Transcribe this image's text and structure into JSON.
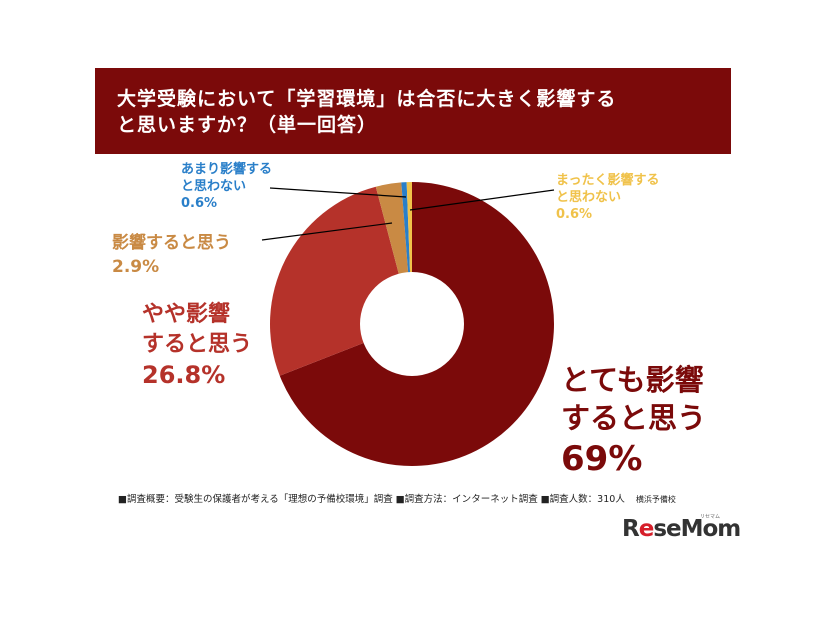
{
  "title": {
    "line1": "大学受験において「学習環境」は合否に大きく影響する",
    "line2": "と思いますか？（単一回答）"
  },
  "chart_data": {
    "type": "pie",
    "title": "大学受験において「学習環境」は合否に大きく影響すると思いますか？（単一回答）",
    "donut": true,
    "slices": [
      {
        "label": "とても影響すると思う",
        "value": 69,
        "value_text": "69%",
        "color": "#7b0a0a"
      },
      {
        "label": "やや影響すると思う",
        "value": 26.8,
        "value_text": "26.8%",
        "color": "#b5322a"
      },
      {
        "label": "影響すると思う",
        "value": 2.9,
        "value_text": "2.9%",
        "color": "#c98a44"
      },
      {
        "label": "あまり影響すると思わない",
        "value": 0.6,
        "value_text": "0.6%",
        "color": "#2a7fc9"
      },
      {
        "label": "まったく影響すると思わない",
        "value": 0.6,
        "value_text": "0.6%",
        "color": "#f0c24a"
      }
    ]
  },
  "labels": {
    "very": {
      "line1": "とても影響",
      "line2": "すると思う",
      "pct": "69%"
    },
    "some": {
      "line1": "やや影響",
      "line2": "すると思う",
      "pct": "26.8%"
    },
    "think": {
      "line1": "影響すると思う",
      "pct": "2.9%"
    },
    "not_much": {
      "line1": "あまり影響する",
      "line2": "と思わない",
      "pct": "0.6%"
    },
    "not_at_all": {
      "line1": "まったく影響する",
      "line2": "と思わない",
      "pct": "0.6%"
    }
  },
  "footnote": {
    "text": "■調査概要：受験生の保護者が考える「理想の予備校環境」調査 ■調査方法：インターネット調査 ■調査人数：310人",
    "source": "横浜予備校"
  },
  "logo": {
    "pre": "R",
    "e": "e",
    "post": "seMom",
    "ruby": "リセマム"
  }
}
